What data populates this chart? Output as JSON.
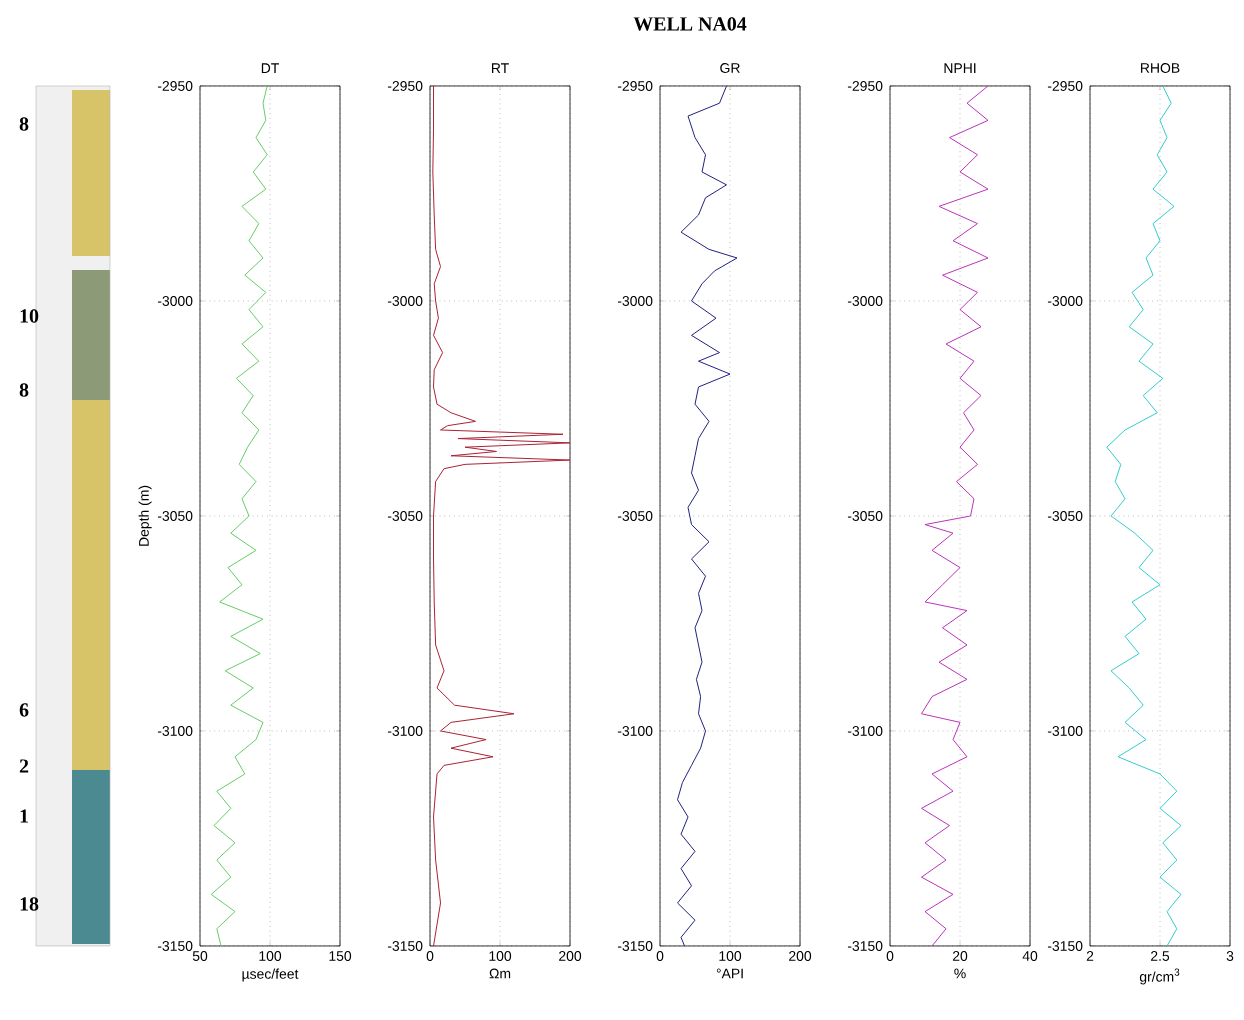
{
  "chart_data": [
    {
      "type": "other",
      "title": "WELL NA04",
      "annotations": [
        "8",
        "10",
        "8",
        "6",
        "2",
        "1",
        "18"
      ]
    },
    {
      "type": "line",
      "title": "DT",
      "xlabel": "µsec/feet",
      "ylabel": "Depth (m)",
      "xlim": [
        50,
        150
      ],
      "xticks": [
        50,
        100,
        150
      ],
      "ylim": [
        -3150,
        -2950
      ],
      "yticks": [
        -3150,
        -3100,
        -3050,
        -3000,
        -2950
      ],
      "grid": true,
      "series": [
        {
          "color": "#66cc66",
          "x": [
            98,
            95,
            97,
            90,
            98,
            88,
            97,
            80,
            92,
            85,
            95,
            82,
            97,
            85,
            95,
            80,
            92,
            76,
            88,
            80,
            92,
            84,
            78,
            90,
            80,
            85,
            72,
            90,
            70,
            80,
            64,
            95,
            72,
            93,
            68,
            88,
            72,
            95,
            90,
            75,
            82,
            62,
            72,
            60,
            75,
            62,
            72,
            58,
            75,
            62,
            65
          ],
          "values": [
            -2950,
            -2954,
            -2958,
            -2962,
            -2966,
            -2970,
            -2974,
            -2978,
            -2982,
            -2986,
            -2990,
            -2994,
            -2998,
            -3002,
            -3006,
            -3010,
            -3014,
            -3018,
            -3022,
            -3026,
            -3030,
            -3034,
            -3038,
            -3042,
            -3046,
            -3050,
            -3054,
            -3058,
            -3062,
            -3066,
            -3070,
            -3074,
            -3078,
            -3082,
            -3086,
            -3090,
            -3094,
            -3098,
            -3102,
            -3106,
            -3110,
            -3114,
            -3118,
            -3122,
            -3126,
            -3130,
            -3134,
            -3138,
            -3142,
            -3146,
            -3150
          ]
        }
      ]
    },
    {
      "type": "line",
      "title": "RT",
      "xlabel": "Ωm",
      "xlim": [
        0,
        200
      ],
      "xticks": [
        0,
        100,
        200
      ],
      "ylim": [
        -3150,
        -2950
      ],
      "yticks": [
        -3150,
        -3100,
        -3050,
        -3000,
        -2950
      ],
      "grid": true,
      "series": [
        {
          "color": "#aa2233",
          "x": [
            5,
            5,
            4,
            6,
            8,
            15,
            6,
            8,
            12,
            5,
            18,
            6,
            5,
            10,
            30,
            65,
            25,
            15,
            190,
            40,
            200,
            50,
            95,
            30,
            200,
            50,
            20,
            8,
            5,
            5,
            6,
            8,
            20,
            10,
            35,
            120,
            30,
            15,
            80,
            30,
            90,
            20,
            10,
            5,
            8,
            15,
            5
          ],
          "values": [
            -2950,
            -2960,
            -2970,
            -2980,
            -2988,
            -2992,
            -2996,
            -3000,
            -3004,
            -3008,
            -3012,
            -3016,
            -3020,
            -3024,
            -3026,
            -3028,
            -3029,
            -3030,
            -3031,
            -3032,
            -3033,
            -3034,
            -3035,
            -3036,
            -3037,
            -3038,
            -3039,
            -3042,
            -3050,
            -3060,
            -3070,
            -3080,
            -3086,
            -3090,
            -3094,
            -3096,
            -3098,
            -3100,
            -3102,
            -3104,
            -3106,
            -3108,
            -3110,
            -3120,
            -3130,
            -3140,
            -3150
          ]
        }
      ]
    },
    {
      "type": "line",
      "title": "GR",
      "xlabel": "°API",
      "xlim": [
        0,
        200
      ],
      "xticks": [
        0,
        100,
        200
      ],
      "ylim": [
        -3150,
        -2950
      ],
      "yticks": [
        -3150,
        -3100,
        -3050,
        -3000,
        -2950
      ],
      "grid": true,
      "series": [
        {
          "color": "#202080",
          "x": [
            95,
            85,
            40,
            50,
            65,
            60,
            95,
            65,
            55,
            30,
            70,
            110,
            78,
            60,
            45,
            80,
            45,
            85,
            55,
            100,
            55,
            50,
            70,
            55,
            50,
            45,
            55,
            40,
            45,
            70,
            45,
            65,
            55,
            60,
            50,
            55,
            60,
            52,
            58,
            55,
            65,
            58,
            45,
            32,
            25,
            40,
            30,
            50,
            30,
            45,
            25,
            50,
            30,
            35
          ],
          "values": [
            -2950,
            -2954,
            -2957,
            -2962,
            -2966,
            -2970,
            -2973,
            -2976,
            -2980,
            -2984,
            -2988,
            -2990,
            -2993,
            -2996,
            -3000,
            -3004,
            -3008,
            -3012,
            -3014,
            -3017,
            -3020,
            -3024,
            -3028,
            -3032,
            -3036,
            -3040,
            -3044,
            -3048,
            -3052,
            -3056,
            -3060,
            -3064,
            -3068,
            -3072,
            -3076,
            -3080,
            -3084,
            -3088,
            -3092,
            -3096,
            -3100,
            -3104,
            -3108,
            -3112,
            -3116,
            -3120,
            -3124,
            -3128,
            -3132,
            -3136,
            -3140,
            -3144,
            -3148,
            -3150
          ]
        }
      ]
    },
    {
      "type": "line",
      "title": "NPHI",
      "xlabel": "%",
      "xlim": [
        0,
        40
      ],
      "xticks": [
        0,
        20,
        40
      ],
      "ylim": [
        -3150,
        -2950
      ],
      "yticks": [
        -3150,
        -3100,
        -3050,
        -3000,
        -2950
      ],
      "grid": true,
      "series": [
        {
          "color": "#bb33bb",
          "x": [
            28,
            22,
            28,
            17,
            25,
            20,
            28,
            14,
            25,
            18,
            28,
            15,
            25,
            20,
            26,
            16,
            24,
            20,
            26,
            21,
            24,
            20,
            25,
            19,
            24,
            23,
            10,
            18,
            12,
            20,
            15,
            10,
            22,
            15,
            22,
            14,
            22,
            12,
            9,
            20,
            18,
            22,
            12,
            18,
            9,
            17,
            10,
            16,
            9,
            18,
            10,
            16,
            12
          ],
          "values": [
            -2950,
            -2954,
            -2958,
            -2962,
            -2966,
            -2970,
            -2974,
            -2978,
            -2982,
            -2986,
            -2990,
            -2994,
            -2998,
            -3002,
            -3006,
            -3010,
            -3014,
            -3018,
            -3022,
            -3026,
            -3030,
            -3034,
            -3038,
            -3042,
            -3046,
            -3050,
            -3052,
            -3054,
            -3058,
            -3062,
            -3066,
            -3070,
            -3072,
            -3076,
            -3080,
            -3084,
            -3088,
            -3092,
            -3096,
            -3098,
            -3102,
            -3106,
            -3110,
            -3114,
            -3118,
            -3122,
            -3126,
            -3130,
            -3134,
            -3138,
            -3142,
            -3146,
            -3150
          ]
        }
      ]
    },
    {
      "type": "line",
      "title": "RHOB",
      "xlabel": "gr/cm$^{3}$",
      "xlim": [
        2,
        3
      ],
      "xticks": [
        2,
        2.5,
        3
      ],
      "ylim": [
        -3150,
        -2950
      ],
      "yticks": [
        -3150,
        -3100,
        -3050,
        -3000,
        -2950
      ],
      "grid": true,
      "series": [
        {
          "color": "#33cccc",
          "x": [
            2.52,
            2.58,
            2.5,
            2.55,
            2.48,
            2.55,
            2.45,
            2.6,
            2.45,
            2.5,
            2.4,
            2.45,
            2.3,
            2.38,
            2.28,
            2.45,
            2.35,
            2.52,
            2.38,
            2.48,
            2.25,
            2.12,
            2.22,
            2.18,
            2.25,
            2.15,
            2.32,
            2.45,
            2.35,
            2.5,
            2.3,
            2.4,
            2.25,
            2.35,
            2.15,
            2.28,
            2.38,
            2.25,
            2.4,
            2.2,
            2.5,
            2.62,
            2.5,
            2.65,
            2.52,
            2.62,
            2.5,
            2.65,
            2.55,
            2.62,
            2.55
          ],
          "values": [
            -2950,
            -2954,
            -2958,
            -2962,
            -2966,
            -2970,
            -2974,
            -2978,
            -2982,
            -2986,
            -2990,
            -2994,
            -2998,
            -3002,
            -3006,
            -3010,
            -3014,
            -3018,
            -3022,
            -3026,
            -3030,
            -3034,
            -3038,
            -3042,
            -3046,
            -3050,
            -3054,
            -3058,
            -3062,
            -3066,
            -3070,
            -3074,
            -3078,
            -3082,
            -3086,
            -3090,
            -3094,
            -3098,
            -3102,
            -3106,
            -3110,
            -3114,
            -3118,
            -3122,
            -3126,
            -3130,
            -3134,
            -3138,
            -3142,
            -3146,
            -3150
          ]
        }
      ]
    }
  ]
}
